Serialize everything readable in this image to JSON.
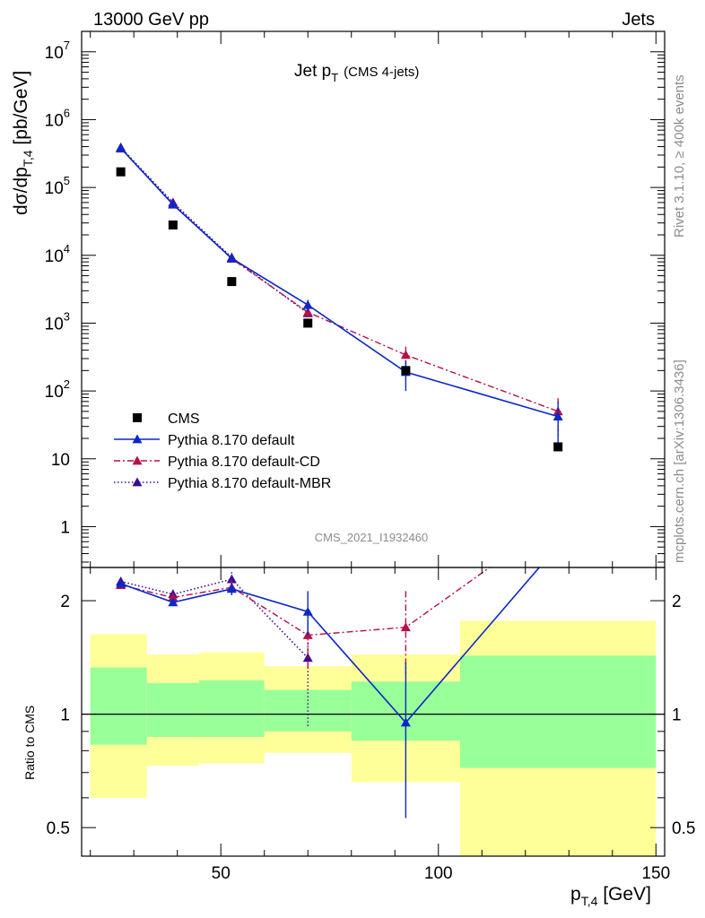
{
  "header": {
    "left": "13000 GeV pp",
    "right": "Jets"
  },
  "side_labels": {
    "rivet": "Rivet 3.1.10, ≥ 400k events",
    "mcplots": "mcplots.cern.ch [arXiv:1306.3436]"
  },
  "analysis_id": "CMS_2021_I1932460",
  "colors": {
    "data": "#000000",
    "default": "#0a28c8",
    "cd": "#b4104a",
    "mbr": "#3c0a96",
    "band_inner": "#99ff99",
    "band_outer": "#ffff99"
  },
  "chart_data": [
    {
      "type": "scatter",
      "title": "Jet p_T (CMS 4-jets)",
      "title_main": "Jet p",
      "title_sub": "T",
      "title_note": "(CMS 4-jets)",
      "ylabel": "dσ/dp_T,4 [pb/GeV]",
      "ylabel_main": "dσ/dp",
      "ylabel_sub": "T,4",
      "ylabel_unit": " [pb/GeV]",
      "yscale": "log",
      "xlim": [
        18,
        152
      ],
      "ylim": [
        0.25,
        20000000
      ],
      "yticks": [
        {
          "value": 1,
          "label": "1",
          "exp": ""
        },
        {
          "value": 10,
          "label": "10",
          "exp": ""
        },
        {
          "value": 100,
          "label": "10",
          "exp": "2"
        },
        {
          "value": 1000,
          "label": "10",
          "exp": "3"
        },
        {
          "value": 10000,
          "label": "10",
          "exp": "4"
        },
        {
          "value": 100000,
          "label": "10",
          "exp": "5"
        },
        {
          "value": 1000000,
          "label": "10",
          "exp": "6"
        },
        {
          "value": 10000000,
          "label": "10",
          "exp": "7"
        }
      ],
      "legend": [
        {
          "name": "CMS",
          "key": "data"
        },
        {
          "name": "Pythia 8.170 default",
          "key": "default"
        },
        {
          "name": "Pythia 8.170 default-CD",
          "key": "cd"
        },
        {
          "name": "Pythia 8.170 default-MBR",
          "key": "mbr"
        }
      ],
      "series": [
        {
          "key": "data",
          "x": [
            27,
            39,
            52.5,
            70,
            92.5,
            127.5
          ],
          "y": [
            170000,
            28000,
            4100,
            1000,
            200,
            15
          ]
        },
        {
          "key": "default",
          "x": [
            27,
            39,
            52.5,
            70,
            92.5,
            127.5
          ],
          "y": [
            380000,
            56000,
            9000,
            1850,
            190,
            42
          ],
          "err": [
            0,
            0,
            0,
            350,
            90,
            28
          ]
        },
        {
          "key": "cd",
          "x": [
            27,
            39,
            52.5,
            70,
            92.5,
            127.5
          ],
          "y": [
            375000,
            57000,
            8900,
            1450,
            340,
            50
          ],
          "err": [
            0,
            0,
            0,
            300,
            110,
            28
          ]
        },
        {
          "key": "mbr",
          "x": [
            27,
            39,
            52.5,
            70,
            92.5,
            127.5
          ],
          "y": [
            390000,
            60000,
            9300,
            1400,
            0,
            0
          ]
        }
      ]
    },
    {
      "type": "line",
      "ylabel": "Ratio to CMS",
      "xlabel": "p_T,4 [GeV]",
      "xlabel_main": "p",
      "xlabel_sub": "T,4",
      "xlabel_unit": " [GeV]",
      "yscale": "log",
      "xlim": [
        18,
        152
      ],
      "ylim": [
        0.42,
        2.45
      ],
      "xticks": [
        50,
        100,
        150
      ],
      "yticks": [
        0.5,
        1,
        2
      ],
      "bands": [
        {
          "x0": 20,
          "x1": 33,
          "inner": [
            0.83,
            1.33
          ],
          "outer": [
            0.6,
            1.63
          ]
        },
        {
          "x0": 33,
          "x1": 45,
          "inner": [
            0.87,
            1.21
          ],
          "outer": [
            0.73,
            1.44
          ]
        },
        {
          "x0": 45,
          "x1": 60,
          "inner": [
            0.87,
            1.23
          ],
          "outer": [
            0.74,
            1.46
          ]
        },
        {
          "x0": 60,
          "x1": 80,
          "inner": [
            0.9,
            1.16
          ],
          "outer": [
            0.79,
            1.34
          ]
        },
        {
          "x0": 80,
          "x1": 105,
          "inner": [
            0.85,
            1.22
          ],
          "outer": [
            0.66,
            1.44
          ]
        },
        {
          "x0": 105,
          "x1": 150,
          "inner": [
            0.72,
            1.43
          ],
          "outer": [
            0.4,
            1.77
          ]
        }
      ],
      "series": [
        {
          "key": "default",
          "x": [
            27,
            39,
            52.5,
            70,
            92.5,
            127.5
          ],
          "y": [
            2.22,
            1.98,
            2.15,
            1.87,
            0.95,
            2.8
          ],
          "err": [
            0,
            0,
            0.08,
            0.25,
            0.42,
            0
          ]
        },
        {
          "key": "cd",
          "x": [
            27,
            39,
            52.5,
            70,
            92.5,
            127.5
          ],
          "y": [
            2.2,
            2.04,
            2.17,
            1.62,
            1.7,
            3.3
          ],
          "err": [
            0,
            0.05,
            0.1,
            0.3,
            0.42,
            0
          ]
        },
        {
          "key": "mbr",
          "x": [
            27,
            39,
            52.5,
            70
          ],
          "y": [
            2.25,
            2.08,
            2.28,
            1.41
          ],
          "err": [
            0,
            0.06,
            0.1,
            0.48
          ]
        }
      ]
    }
  ]
}
